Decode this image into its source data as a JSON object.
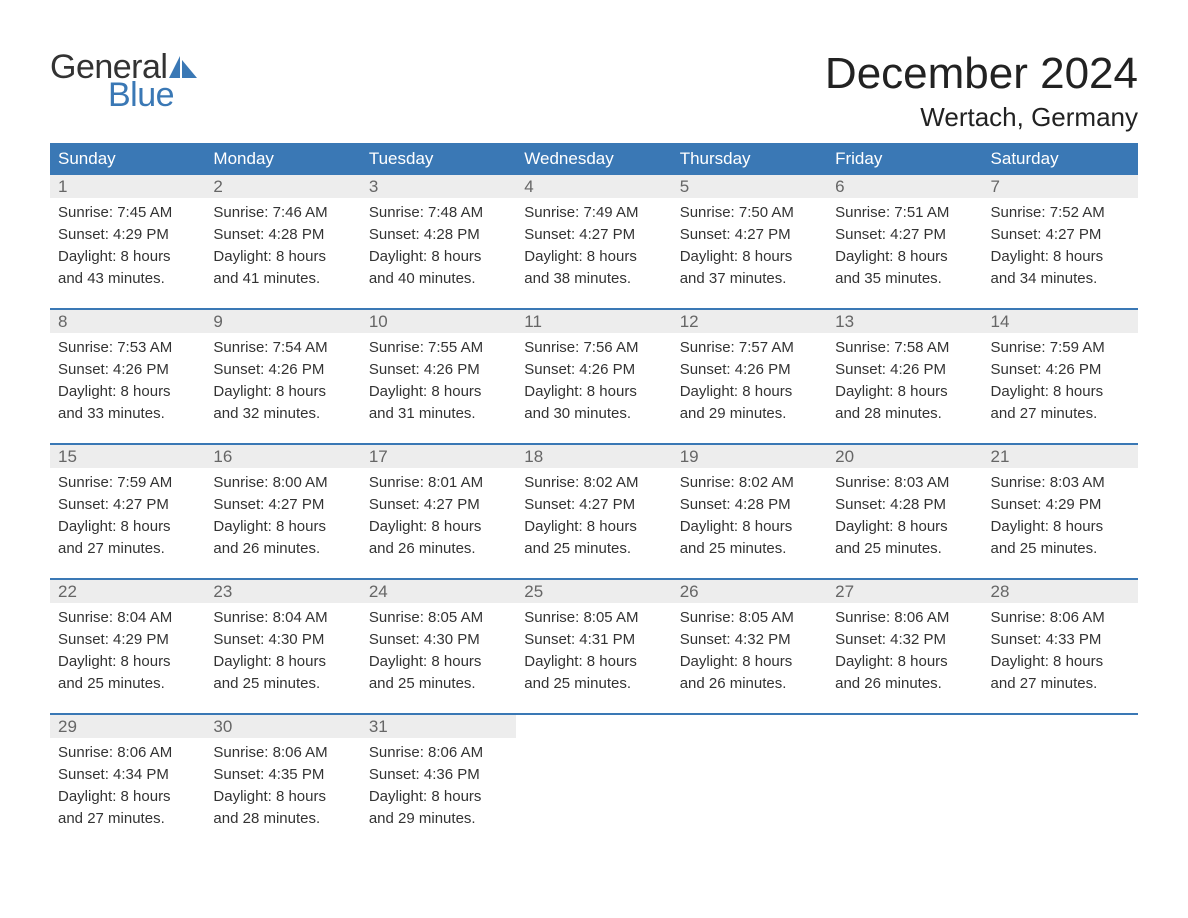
{
  "logo": {
    "text_top": "General",
    "text_bottom": "Blue",
    "top_color": "#333333",
    "bottom_color": "#3a78b5",
    "sail_color": "#3a78b5"
  },
  "title": "December 2024",
  "location": "Wertach, Germany",
  "colors": {
    "header_bg": "#3a78b5",
    "header_text": "#ffffff",
    "daynum_bg": "#ededed",
    "daynum_text": "#666666",
    "body_text": "#333333",
    "sep_line": "#3a78b5",
    "page_bg": "#ffffff"
  },
  "typography": {
    "title_fontsize": 44,
    "location_fontsize": 26,
    "dow_fontsize": 17,
    "daynum_fontsize": 17,
    "detail_fontsize": 15,
    "font_family": "Arial"
  },
  "days_of_week": [
    "Sunday",
    "Monday",
    "Tuesday",
    "Wednesday",
    "Thursday",
    "Friday",
    "Saturday"
  ],
  "weeks": [
    [
      {
        "n": "1",
        "sunrise": "Sunrise: 7:45 AM",
        "sunset": "Sunset: 4:29 PM",
        "d1": "Daylight: 8 hours",
        "d2": "and 43 minutes."
      },
      {
        "n": "2",
        "sunrise": "Sunrise: 7:46 AM",
        "sunset": "Sunset: 4:28 PM",
        "d1": "Daylight: 8 hours",
        "d2": "and 41 minutes."
      },
      {
        "n": "3",
        "sunrise": "Sunrise: 7:48 AM",
        "sunset": "Sunset: 4:28 PM",
        "d1": "Daylight: 8 hours",
        "d2": "and 40 minutes."
      },
      {
        "n": "4",
        "sunrise": "Sunrise: 7:49 AM",
        "sunset": "Sunset: 4:27 PM",
        "d1": "Daylight: 8 hours",
        "d2": "and 38 minutes."
      },
      {
        "n": "5",
        "sunrise": "Sunrise: 7:50 AM",
        "sunset": "Sunset: 4:27 PM",
        "d1": "Daylight: 8 hours",
        "d2": "and 37 minutes."
      },
      {
        "n": "6",
        "sunrise": "Sunrise: 7:51 AM",
        "sunset": "Sunset: 4:27 PM",
        "d1": "Daylight: 8 hours",
        "d2": "and 35 minutes."
      },
      {
        "n": "7",
        "sunrise": "Sunrise: 7:52 AM",
        "sunset": "Sunset: 4:27 PM",
        "d1": "Daylight: 8 hours",
        "d2": "and 34 minutes."
      }
    ],
    [
      {
        "n": "8",
        "sunrise": "Sunrise: 7:53 AM",
        "sunset": "Sunset: 4:26 PM",
        "d1": "Daylight: 8 hours",
        "d2": "and 33 minutes."
      },
      {
        "n": "9",
        "sunrise": "Sunrise: 7:54 AM",
        "sunset": "Sunset: 4:26 PM",
        "d1": "Daylight: 8 hours",
        "d2": "and 32 minutes."
      },
      {
        "n": "10",
        "sunrise": "Sunrise: 7:55 AM",
        "sunset": "Sunset: 4:26 PM",
        "d1": "Daylight: 8 hours",
        "d2": "and 31 minutes."
      },
      {
        "n": "11",
        "sunrise": "Sunrise: 7:56 AM",
        "sunset": "Sunset: 4:26 PM",
        "d1": "Daylight: 8 hours",
        "d2": "and 30 minutes."
      },
      {
        "n": "12",
        "sunrise": "Sunrise: 7:57 AM",
        "sunset": "Sunset: 4:26 PM",
        "d1": "Daylight: 8 hours",
        "d2": "and 29 minutes."
      },
      {
        "n": "13",
        "sunrise": "Sunrise: 7:58 AM",
        "sunset": "Sunset: 4:26 PM",
        "d1": "Daylight: 8 hours",
        "d2": "and 28 minutes."
      },
      {
        "n": "14",
        "sunrise": "Sunrise: 7:59 AM",
        "sunset": "Sunset: 4:26 PM",
        "d1": "Daylight: 8 hours",
        "d2": "and 27 minutes."
      }
    ],
    [
      {
        "n": "15",
        "sunrise": "Sunrise: 7:59 AM",
        "sunset": "Sunset: 4:27 PM",
        "d1": "Daylight: 8 hours",
        "d2": "and 27 minutes."
      },
      {
        "n": "16",
        "sunrise": "Sunrise: 8:00 AM",
        "sunset": "Sunset: 4:27 PM",
        "d1": "Daylight: 8 hours",
        "d2": "and 26 minutes."
      },
      {
        "n": "17",
        "sunrise": "Sunrise: 8:01 AM",
        "sunset": "Sunset: 4:27 PM",
        "d1": "Daylight: 8 hours",
        "d2": "and 26 minutes."
      },
      {
        "n": "18",
        "sunrise": "Sunrise: 8:02 AM",
        "sunset": "Sunset: 4:27 PM",
        "d1": "Daylight: 8 hours",
        "d2": "and 25 minutes."
      },
      {
        "n": "19",
        "sunrise": "Sunrise: 8:02 AM",
        "sunset": "Sunset: 4:28 PM",
        "d1": "Daylight: 8 hours",
        "d2": "and 25 minutes."
      },
      {
        "n": "20",
        "sunrise": "Sunrise: 8:03 AM",
        "sunset": "Sunset: 4:28 PM",
        "d1": "Daylight: 8 hours",
        "d2": "and 25 minutes."
      },
      {
        "n": "21",
        "sunrise": "Sunrise: 8:03 AM",
        "sunset": "Sunset: 4:29 PM",
        "d1": "Daylight: 8 hours",
        "d2": "and 25 minutes."
      }
    ],
    [
      {
        "n": "22",
        "sunrise": "Sunrise: 8:04 AM",
        "sunset": "Sunset: 4:29 PM",
        "d1": "Daylight: 8 hours",
        "d2": "and 25 minutes."
      },
      {
        "n": "23",
        "sunrise": "Sunrise: 8:04 AM",
        "sunset": "Sunset: 4:30 PM",
        "d1": "Daylight: 8 hours",
        "d2": "and 25 minutes."
      },
      {
        "n": "24",
        "sunrise": "Sunrise: 8:05 AM",
        "sunset": "Sunset: 4:30 PM",
        "d1": "Daylight: 8 hours",
        "d2": "and 25 minutes."
      },
      {
        "n": "25",
        "sunrise": "Sunrise: 8:05 AM",
        "sunset": "Sunset: 4:31 PM",
        "d1": "Daylight: 8 hours",
        "d2": "and 25 minutes."
      },
      {
        "n": "26",
        "sunrise": "Sunrise: 8:05 AM",
        "sunset": "Sunset: 4:32 PM",
        "d1": "Daylight: 8 hours",
        "d2": "and 26 minutes."
      },
      {
        "n": "27",
        "sunrise": "Sunrise: 8:06 AM",
        "sunset": "Sunset: 4:32 PM",
        "d1": "Daylight: 8 hours",
        "d2": "and 26 minutes."
      },
      {
        "n": "28",
        "sunrise": "Sunrise: 8:06 AM",
        "sunset": "Sunset: 4:33 PM",
        "d1": "Daylight: 8 hours",
        "d2": "and 27 minutes."
      }
    ],
    [
      {
        "n": "29",
        "sunrise": "Sunrise: 8:06 AM",
        "sunset": "Sunset: 4:34 PM",
        "d1": "Daylight: 8 hours",
        "d2": "and 27 minutes."
      },
      {
        "n": "30",
        "sunrise": "Sunrise: 8:06 AM",
        "sunset": "Sunset: 4:35 PM",
        "d1": "Daylight: 8 hours",
        "d2": "and 28 minutes."
      },
      {
        "n": "31",
        "sunrise": "Sunrise: 8:06 AM",
        "sunset": "Sunset: 4:36 PM",
        "d1": "Daylight: 8 hours",
        "d2": "and 29 minutes."
      },
      null,
      null,
      null,
      null
    ]
  ]
}
